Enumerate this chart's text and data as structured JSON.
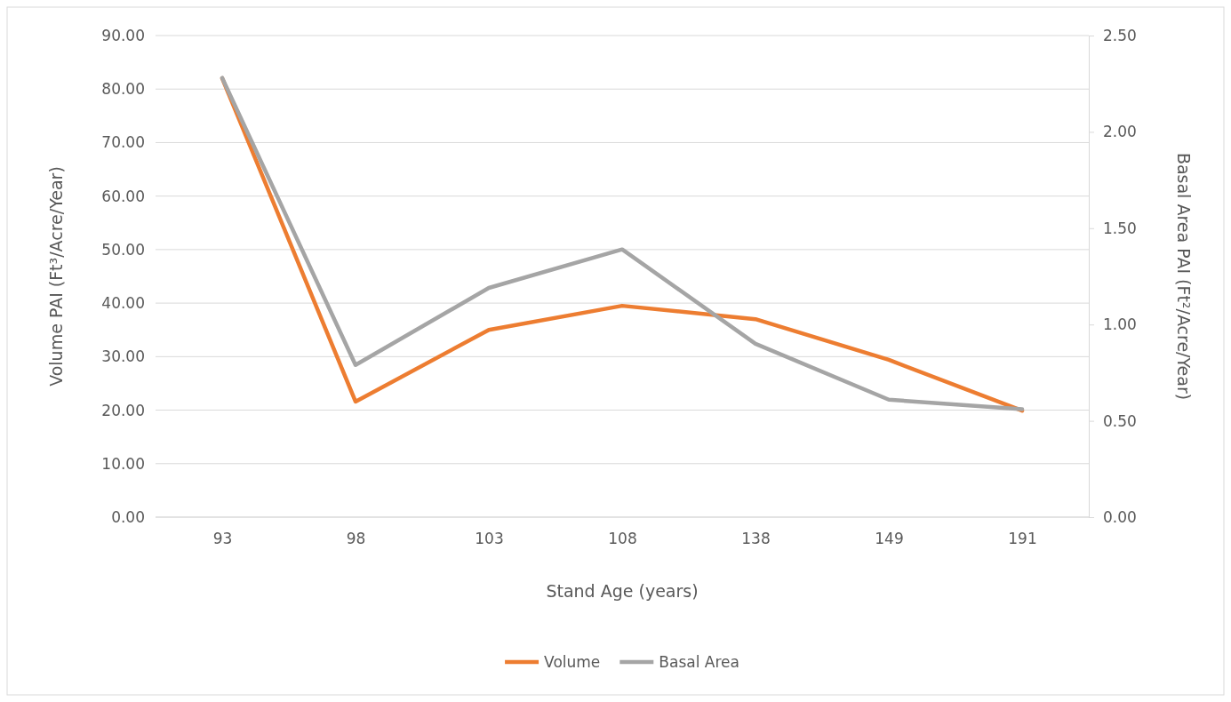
{
  "chart_data": {
    "type": "line",
    "xlabel": "Stand Age (years)",
    "ylabel": "Volume PAI (Ft³/Acre/Year)",
    "y2label": "Basal Area PAI (Ft²/Acre/Year)",
    "categories": [
      "93",
      "98",
      "103",
      "108",
      "138",
      "149",
      "191"
    ],
    "series": [
      {
        "name": "Volume",
        "color": "#ed7d31",
        "values": [
          82.0,
          21.6,
          35.0,
          39.5,
          37.0,
          29.4,
          19.9
        ]
      },
      {
        "name": "Basal Area",
        "color": "#a5a5a5",
        "axis": "y2",
        "values": [
          2.28,
          0.79,
          1.19,
          1.39,
          0.9,
          0.61,
          0.56
        ]
      }
    ],
    "ylim": [
      0,
      90
    ],
    "yticks": [
      {
        "value": 0,
        "label": "0.00"
      },
      {
        "value": 10,
        "label": "10.00"
      },
      {
        "value": 20,
        "label": "20.00"
      },
      {
        "value": 30,
        "label": "30.00"
      },
      {
        "value": 40,
        "label": "40.00"
      },
      {
        "value": 50,
        "label": "50.00"
      },
      {
        "value": 60,
        "label": "60.00"
      },
      {
        "value": 70,
        "label": "70.00"
      },
      {
        "value": 80,
        "label": "80.00"
      },
      {
        "value": 90,
        "label": "90.00"
      }
    ],
    "y2lim": [
      0,
      2.5
    ],
    "y2ticks": [
      {
        "value": 0,
        "label": "0.00"
      },
      {
        "value": 0.5,
        "label": "0.50"
      },
      {
        "value": 1,
        "label": "1.00"
      },
      {
        "value": 1.5,
        "label": "1.50"
      },
      {
        "value": 2,
        "label": "2.00"
      },
      {
        "value": 2.5,
        "label": "2.50"
      }
    ],
    "grid": "y",
    "legend": "bottom",
    "marker": "none",
    "line_style": "solid"
  }
}
